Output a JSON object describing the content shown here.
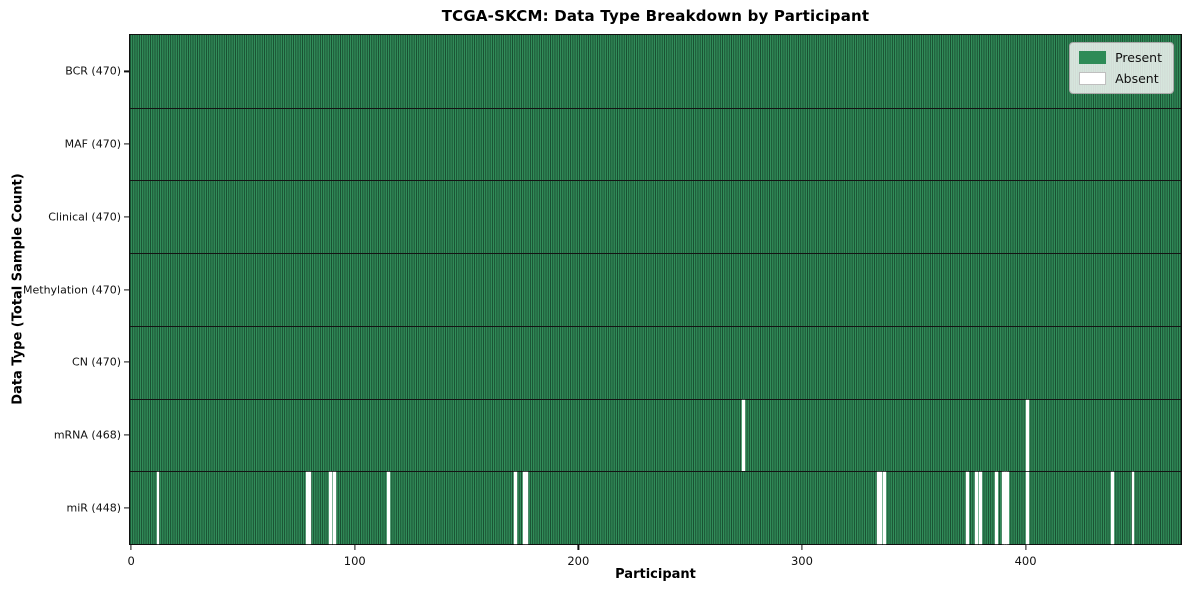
{
  "title": "TCGA-SKCM: Data Type Breakdown by Participant",
  "axes": {
    "xlabel": "Participant",
    "ylabel": "Data Type (Total Sample Count)"
  },
  "legend": {
    "present_label": "Present",
    "absent_label": "Absent"
  },
  "chart_data": {
    "type": "heatmap",
    "title": "TCGA-SKCM: Data Type Breakdown by Participant",
    "xlabel": "Participant",
    "ylabel": "Data Type (Total Sample Count)",
    "legend_entries": [
      "Present",
      "Absent"
    ],
    "legend_position": "upper right",
    "n_participants": 470,
    "xlim": [
      -0.5,
      469.5
    ],
    "x_ticks": [
      0,
      100,
      200,
      300,
      400
    ],
    "colors": {
      "present": "#2e8b57",
      "absent": "#ffffff"
    },
    "rows": [
      {
        "label": "BCR",
        "count": 470,
        "absent_participants": []
      },
      {
        "label": "MAF",
        "count": 470,
        "absent_participants": []
      },
      {
        "label": "Clinical",
        "count": 470,
        "absent_participants": []
      },
      {
        "label": "Methylation",
        "count": 470,
        "absent_participants": []
      },
      {
        "label": "CN",
        "count": 470,
        "absent_participants": []
      },
      {
        "label": "mRNA",
        "count": 468,
        "absent_participants": [
          274,
          401
        ]
      },
      {
        "label": "miR",
        "count": 448,
        "absent_participants": [
          12,
          79,
          80,
          89,
          91,
          115,
          172,
          176,
          177,
          334,
          335,
          337,
          374,
          378,
          380,
          387,
          390,
          391,
          392,
          401,
          439,
          448
        ]
      }
    ]
  }
}
